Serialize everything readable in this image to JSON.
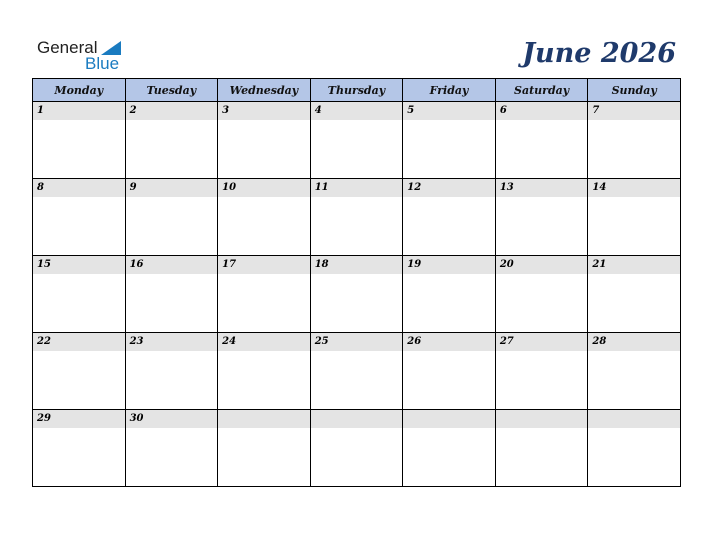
{
  "logo": {
    "general": "General",
    "blue": "Blue"
  },
  "title": "June 2026",
  "weekdays": [
    "Monday",
    "Tuesday",
    "Wednesday",
    "Thursday",
    "Friday",
    "Saturday",
    "Sunday"
  ],
  "weeks": [
    [
      "1",
      "2",
      "3",
      "4",
      "5",
      "6",
      "7"
    ],
    [
      "8",
      "9",
      "10",
      "11",
      "12",
      "13",
      "14"
    ],
    [
      "15",
      "16",
      "17",
      "18",
      "19",
      "20",
      "21"
    ],
    [
      "22",
      "23",
      "24",
      "25",
      "26",
      "27",
      "28"
    ],
    [
      "29",
      "30",
      "",
      "",
      "",
      "",
      ""
    ]
  ],
  "colors": {
    "header": "#b4c6e7",
    "title": "#1f3a6b",
    "date_band": "#e4e4e4",
    "brand": "#1a7bc0"
  }
}
